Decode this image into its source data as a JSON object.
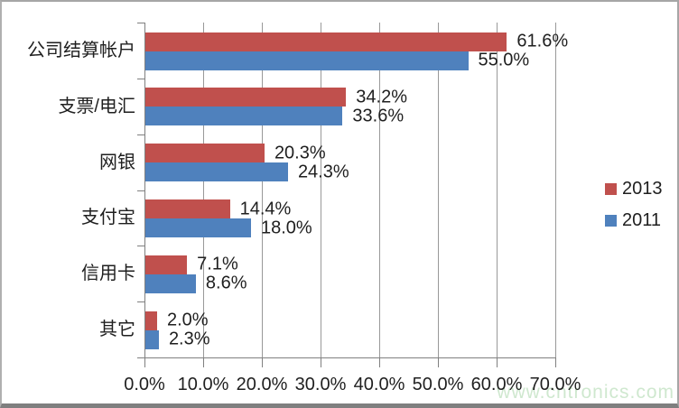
{
  "chart_data": {
    "type": "bar",
    "orientation": "horizontal",
    "categories": [
      "公司结算帐户",
      "支票/电汇",
      "网银",
      "支付宝",
      "信用卡",
      "其它"
    ],
    "series": [
      {
        "name": "2013",
        "color": "#C0504D",
        "values": [
          61.6,
          34.2,
          20.3,
          14.4,
          7.1,
          2.0
        ]
      },
      {
        "name": "2011",
        "color": "#4F81BD",
        "values": [
          55.0,
          33.6,
          24.3,
          18.0,
          8.6,
          2.3
        ]
      }
    ],
    "value_labels": [
      [
        "61.6%",
        "34.2%",
        "20.3%",
        "14.4%",
        "7.1%",
        "2.0%"
      ],
      [
        "55.0%",
        "33.6%",
        "24.3%",
        "18.0%",
        "8.6%",
        "2.3%"
      ]
    ],
    "x_axis": {
      "tick_labels": [
        "0.0%",
        "10.0%",
        "20.0%",
        "30.0%",
        "40.0%",
        "50.0%",
        "60.0%",
        "70.0%"
      ],
      "min": 0,
      "max": 70
    },
    "legend": {
      "position": "right",
      "entries": [
        "2013",
        "2011"
      ]
    },
    "grid": true,
    "colors": {
      "grid": "#999999",
      "axis": "#808080",
      "text": "#1f1f1f"
    },
    "title": "",
    "xlabel": "",
    "ylabel": ""
  },
  "watermark": {
    "text": "www.cntronics.com",
    "color": "#cfe8cf"
  }
}
